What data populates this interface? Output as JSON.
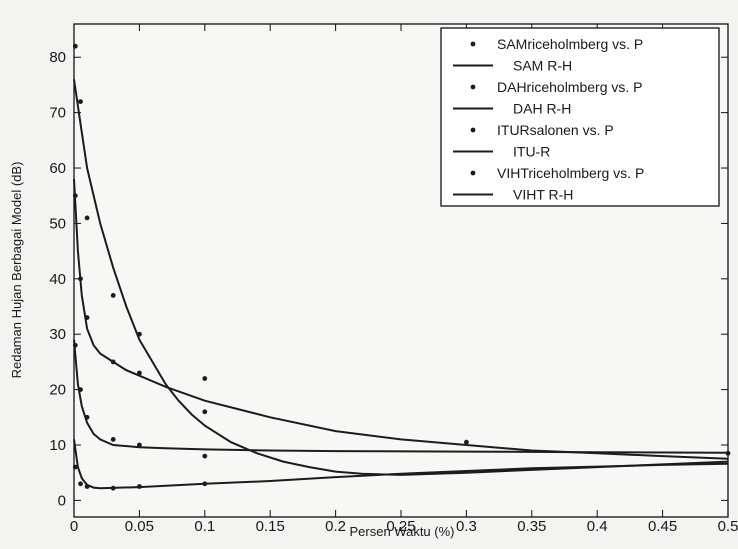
{
  "chart_data": {
    "type": "scatter",
    "title": "",
    "xlabel": "Persen Waktu (%)",
    "ylabel": "Redaman Hujan Berbagai Model (dB)",
    "xlim": [
      0,
      0.5
    ],
    "ylim": [
      -3,
      86
    ],
    "xticks": [
      0,
      0.05,
      0.1,
      0.15,
      0.2,
      0.25,
      0.3,
      0.35,
      0.4,
      0.45,
      0.5
    ],
    "xtick_labels": [
      "0",
      "0.05",
      "0.1",
      "0.15",
      "0.2",
      "0.25",
      "0.3",
      "0.35",
      "0.4",
      "0.45",
      "0.5"
    ],
    "yticks": [
      0,
      10,
      20,
      30,
      40,
      50,
      60,
      70,
      80
    ],
    "ytick_labels": [
      "0",
      "10",
      "20",
      "30",
      "40",
      "50",
      "60",
      "70",
      "80"
    ],
    "grid": false,
    "legend_position": "top-right",
    "series": [
      {
        "name": "SAMriceholmberg vs. P",
        "kind": "points",
        "x": [
          0.001,
          0.005,
          0.01,
          0.03,
          0.05,
          0.1
        ],
        "y": [
          82,
          72,
          51,
          37,
          30,
          22
        ]
      },
      {
        "name": "SAM R-H",
        "kind": "line",
        "x": [
          0.0,
          0.005,
          0.01,
          0.02,
          0.03,
          0.04,
          0.05,
          0.06,
          0.07,
          0.08,
          0.09,
          0.1,
          0.12,
          0.14,
          0.16,
          0.18,
          0.2,
          0.22,
          0.25,
          0.3,
          0.35,
          0.4,
          0.45,
          0.5
        ],
        "y": [
          76,
          68,
          60,
          50,
          42,
          35,
          29,
          25,
          21,
          18,
          15.5,
          13.5,
          10.5,
          8.5,
          7,
          6,
          5.2,
          4.8,
          4.6,
          5,
          5.5,
          6,
          6.5,
          7
        ]
      },
      {
        "name": "DAHriceholmberg vs. P",
        "kind": "points",
        "x": [
          0.001,
          0.005,
          0.01,
          0.03,
          0.05,
          0.1
        ],
        "y": [
          55,
          40,
          33,
          25,
          23,
          16
        ]
      },
      {
        "name": "DAH R-H",
        "kind": "line",
        "x": [
          0.0,
          0.003,
          0.006,
          0.01,
          0.015,
          0.02,
          0.03,
          0.04,
          0.05,
          0.07,
          0.1,
          0.15,
          0.2,
          0.25,
          0.3,
          0.35,
          0.4,
          0.45,
          0.5
        ],
        "y": [
          58,
          45,
          37,
          31,
          28,
          26.5,
          25,
          23.5,
          22.5,
          20.5,
          18,
          15,
          12.5,
          11,
          10,
          9,
          8.5,
          8,
          7.5
        ]
      },
      {
        "name": "ITURsalonen vs. P",
        "kind": "points",
        "x": [
          0.001,
          0.005,
          0.01,
          0.03,
          0.05,
          0.1,
          0.3,
          0.5
        ],
        "y": [
          28,
          20,
          15,
          11,
          10,
          8,
          10.5,
          8.5
        ]
      },
      {
        "name": "ITU-R",
        "kind": "line",
        "x": [
          0.0,
          0.003,
          0.006,
          0.01,
          0.015,
          0.02,
          0.03,
          0.05,
          0.07,
          0.1,
          0.15,
          0.2,
          0.3,
          0.4,
          0.5
        ],
        "y": [
          29,
          21,
          17,
          14,
          12,
          11,
          10,
          9.6,
          9.4,
          9.2,
          9,
          8.9,
          8.8,
          8.7,
          8.6
        ]
      },
      {
        "name": "VIHTriceholmberg vs. P",
        "kind": "points",
        "x": [
          0.001,
          0.005,
          0.01,
          0.03,
          0.05,
          0.1
        ],
        "y": [
          6,
          3,
          2.5,
          2.2,
          2.5,
          3
        ]
      },
      {
        "name": "VIHT R-H",
        "kind": "line",
        "x": [
          0.0,
          0.003,
          0.006,
          0.01,
          0.015,
          0.02,
          0.05,
          0.1,
          0.15,
          0.2,
          0.25,
          0.3,
          0.35,
          0.4,
          0.45,
          0.5
        ],
        "y": [
          11,
          6,
          4,
          2.8,
          2.3,
          2.2,
          2.4,
          3,
          3.5,
          4.2,
          4.8,
          5.3,
          5.8,
          6.1,
          6.4,
          6.6
        ]
      }
    ]
  }
}
